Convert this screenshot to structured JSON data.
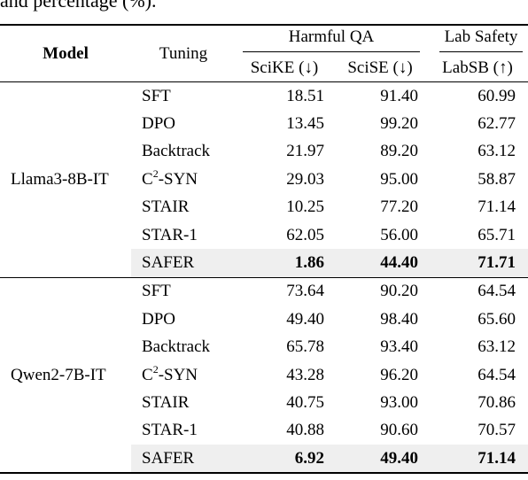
{
  "caption_fragment": "and percentage (%).",
  "table": {
    "headers": {
      "model": "Model",
      "tuning": "Tuning",
      "group_harmful": "Harmful QA",
      "group_lab": "Lab Safety",
      "sciKE": "SciKE (↓)",
      "sciSE": "SciSE (↓)",
      "labSB": "LabSB (↑)"
    },
    "groups": [
      {
        "model": "Llama3-8B-IT",
        "rows": [
          {
            "tuning": "SFT",
            "scike": "18.51",
            "scise": "91.40",
            "labsb": "60.99"
          },
          {
            "tuning": "DPO",
            "scike": "13.45",
            "scise": "99.20",
            "labsb": "62.77"
          },
          {
            "tuning": "Backtrack",
            "scike": "21.97",
            "scise": "89.20",
            "labsb": "63.12"
          },
          {
            "tuning_base": "C",
            "tuning_sup": "2",
            "tuning_rest": "-SYN",
            "scike": "29.03",
            "scise": "95.00",
            "labsb": "58.87"
          },
          {
            "tuning": "STAIR",
            "scike": "10.25",
            "scise": "77.20",
            "labsb": "71.14"
          },
          {
            "tuning": "STAR-1",
            "scike": "62.05",
            "scise": "56.00",
            "labsb": "65.71"
          },
          {
            "tuning": "SAFER",
            "scike": "1.86",
            "scise": "44.40",
            "labsb": "71.71"
          }
        ]
      },
      {
        "model": "Qwen2-7B-IT",
        "rows": [
          {
            "tuning": "SFT",
            "scike": "73.64",
            "scise": "90.20",
            "labsb": "64.54"
          },
          {
            "tuning": "DPO",
            "scike": "49.40",
            "scise": "98.40",
            "labsb": "65.60"
          },
          {
            "tuning": "Backtrack",
            "scike": "65.78",
            "scise": "93.40",
            "labsb": "63.12"
          },
          {
            "tuning_base": "C",
            "tuning_sup": "2",
            "tuning_rest": "-SYN",
            "scike": "43.28",
            "scise": "96.20",
            "labsb": "64.54"
          },
          {
            "tuning": "STAIR",
            "scike": "40.75",
            "scise": "93.00",
            "labsb": "70.86"
          },
          {
            "tuning": "STAR-1",
            "scike": "40.88",
            "scise": "90.60",
            "labsb": "70.57"
          },
          {
            "tuning": "SAFER",
            "scike": "6.92",
            "scise": "49.40",
            "labsb": "71.14"
          }
        ]
      }
    ]
  }
}
